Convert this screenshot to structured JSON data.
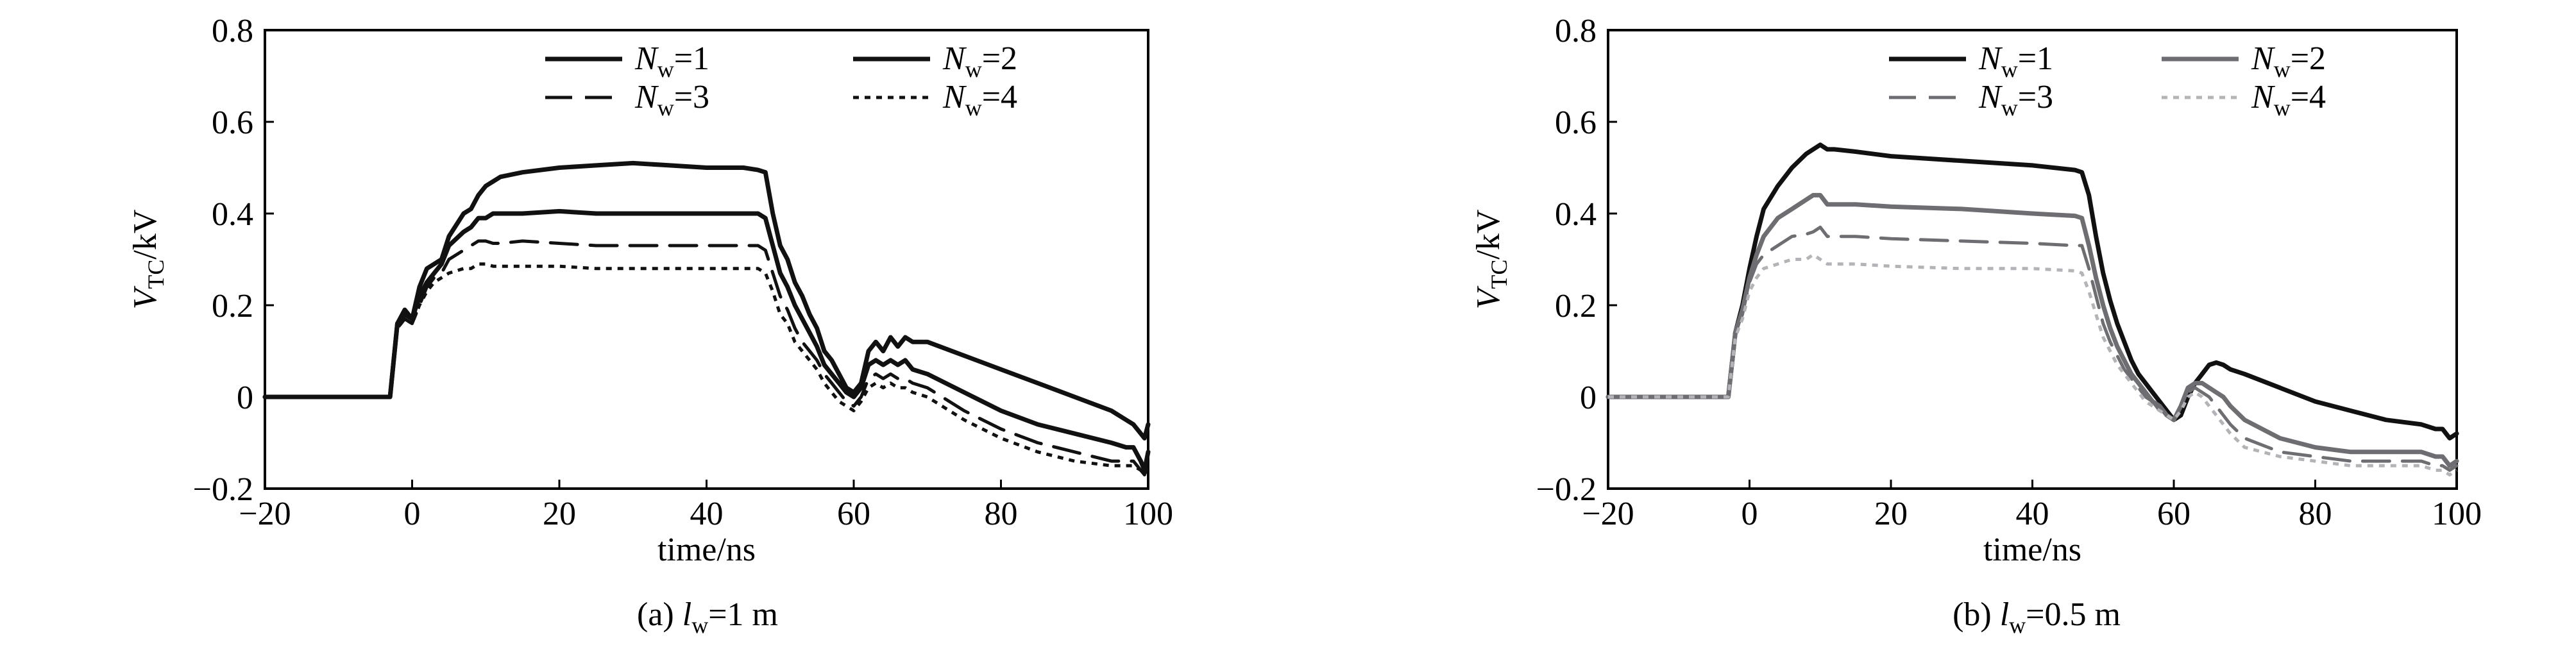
{
  "chart_data": [
    {
      "type": "line",
      "caption_prefix": "(a)",
      "caption_var": "l",
      "caption_sub": "w",
      "caption_rest": "=1 m",
      "xlabel": "time/ns",
      "ylabel_var": "V",
      "ylabel_sub": "TC",
      "ylabel_unit": "/kV",
      "xlim": [
        -20,
        100
      ],
      "ylim": [
        -0.2,
        0.8
      ],
      "xticks": [
        "−20",
        "0",
        "20",
        "40",
        "60",
        "80",
        "100"
      ],
      "xtick_values": [
        -20,
        0,
        20,
        40,
        60,
        80,
        100
      ],
      "yticks": [
        "−0.2",
        "0",
        "0.2",
        "0.4",
        "0.6",
        "0.8"
      ],
      "ytick_values": [
        -0.2,
        0,
        0.2,
        0.4,
        0.6,
        0.8
      ],
      "series": [
        {
          "name": "Nw=1",
          "label_var": "N",
          "label_sub": "w",
          "label_rest": "=1",
          "color": "#111111",
          "dash": "solid",
          "x": [
            -20,
            -3,
            -2,
            -1,
            0,
            1,
            2,
            3,
            4,
            5,
            7,
            8,
            9,
            10,
            11,
            12,
            15,
            20,
            25,
            30,
            35,
            40,
            45,
            47,
            48,
            49,
            50,
            51,
            52,
            53,
            54,
            55,
            56,
            57,
            58,
            59,
            60,
            61,
            62,
            63,
            64,
            65,
            66,
            67,
            68,
            70,
            75,
            80,
            85,
            90,
            95,
            97,
            98,
            99,
            99.5,
            100
          ],
          "y": [
            0,
            0,
            0.16,
            0.19,
            0.17,
            0.24,
            0.28,
            0.29,
            0.3,
            0.35,
            0.4,
            0.41,
            0.44,
            0.46,
            0.47,
            0.48,
            0.49,
            0.5,
            0.505,
            0.51,
            0.505,
            0.5,
            0.5,
            0.495,
            0.49,
            0.4,
            0.33,
            0.3,
            0.25,
            0.22,
            0.18,
            0.15,
            0.1,
            0.08,
            0.05,
            0.02,
            0.01,
            0.03,
            0.1,
            0.12,
            0.1,
            0.13,
            0.11,
            0.13,
            0.12,
            0.12,
            0.09,
            0.06,
            0.03,
            0.0,
            -0.03,
            -0.05,
            -0.06,
            -0.08,
            -0.09,
            -0.06
          ]
        },
        {
          "name": "Nw=2",
          "label_var": "N",
          "label_sub": "w",
          "label_rest": "=2",
          "color": "#111111",
          "dash": "solid",
          "x": [
            -20,
            -3,
            -2,
            -1,
            0,
            1,
            2,
            3,
            4,
            5,
            7,
            8,
            9,
            10,
            11,
            12,
            15,
            20,
            25,
            30,
            35,
            40,
            45,
            47,
            48,
            49,
            50,
            51,
            52,
            53,
            54,
            55,
            56,
            57,
            58,
            59,
            60,
            61,
            62,
            63,
            64,
            65,
            66,
            67,
            68,
            70,
            75,
            80,
            85,
            90,
            95,
            97,
            98,
            99,
            99.5,
            100
          ],
          "y": [
            0,
            0,
            0.16,
            0.18,
            0.17,
            0.22,
            0.25,
            0.27,
            0.29,
            0.33,
            0.36,
            0.37,
            0.39,
            0.39,
            0.4,
            0.4,
            0.4,
            0.405,
            0.4,
            0.4,
            0.4,
            0.4,
            0.4,
            0.4,
            0.39,
            0.33,
            0.27,
            0.24,
            0.2,
            0.17,
            0.14,
            0.11,
            0.07,
            0.05,
            0.03,
            0.01,
            0.0,
            0.02,
            0.07,
            0.08,
            0.07,
            0.08,
            0.07,
            0.08,
            0.06,
            0.05,
            0.01,
            -0.03,
            -0.06,
            -0.08,
            -0.1,
            -0.11,
            -0.11,
            -0.14,
            -0.16,
            -0.12
          ]
        },
        {
          "name": "Nw=3",
          "label_var": "N",
          "label_sub": "w",
          "label_rest": "=3",
          "color": "#111111",
          "dash": "dashed",
          "x": [
            -20,
            -3,
            -2,
            -1,
            0,
            1,
            2,
            3,
            4,
            5,
            7,
            8,
            9,
            10,
            11,
            12,
            15,
            20,
            25,
            30,
            35,
            40,
            45,
            47,
            48,
            49,
            50,
            51,
            52,
            53,
            54,
            55,
            56,
            57,
            58,
            59,
            60,
            61,
            62,
            63,
            64,
            65,
            66,
            67,
            68,
            70,
            75,
            80,
            85,
            90,
            95,
            97,
            98,
            99,
            99.5,
            100
          ],
          "y": [
            0,
            0,
            0.15,
            0.17,
            0.16,
            0.2,
            0.24,
            0.26,
            0.27,
            0.3,
            0.32,
            0.33,
            0.34,
            0.34,
            0.335,
            0.335,
            0.34,
            0.335,
            0.33,
            0.33,
            0.33,
            0.33,
            0.33,
            0.33,
            0.32,
            0.27,
            0.22,
            0.19,
            0.15,
            0.12,
            0.1,
            0.08,
            0.05,
            0.03,
            0.01,
            -0.01,
            -0.02,
            0.0,
            0.04,
            0.05,
            0.04,
            0.05,
            0.04,
            0.04,
            0.03,
            0.02,
            -0.03,
            -0.07,
            -0.1,
            -0.12,
            -0.14,
            -0.14,
            -0.14,
            -0.16,
            -0.17,
            -0.14
          ]
        },
        {
          "name": "Nw=4",
          "label_var": "N",
          "label_sub": "w",
          "label_rest": "=4",
          "color": "#111111",
          "dash": "dotted",
          "x": [
            -20,
            -3,
            -2,
            -1,
            0,
            1,
            2,
            3,
            4,
            5,
            7,
            8,
            9,
            10,
            11,
            12,
            15,
            20,
            25,
            30,
            35,
            40,
            45,
            47,
            48,
            49,
            50,
            51,
            52,
            53,
            54,
            55,
            56,
            57,
            58,
            59,
            60,
            61,
            62,
            63,
            64,
            65,
            66,
            67,
            68,
            70,
            75,
            80,
            85,
            90,
            95,
            97,
            98,
            99,
            99.5,
            100
          ],
          "y": [
            0,
            0,
            0.15,
            0.17,
            0.16,
            0.2,
            0.23,
            0.25,
            0.26,
            0.27,
            0.28,
            0.28,
            0.29,
            0.29,
            0.285,
            0.285,
            0.285,
            0.285,
            0.28,
            0.28,
            0.28,
            0.28,
            0.28,
            0.28,
            0.27,
            0.23,
            0.18,
            0.16,
            0.12,
            0.1,
            0.08,
            0.06,
            0.03,
            0.01,
            -0.01,
            -0.02,
            -0.03,
            -0.01,
            0.02,
            0.03,
            0.02,
            0.03,
            0.02,
            0.02,
            0.01,
            0.0,
            -0.05,
            -0.09,
            -0.12,
            -0.14,
            -0.15,
            -0.15,
            -0.15,
            -0.16,
            -0.17,
            -0.15
          ]
        }
      ]
    },
    {
      "type": "line",
      "caption_prefix": "(b)",
      "caption_var": "l",
      "caption_sub": "w",
      "caption_rest": "=0.5 m",
      "xlabel": "time/ns",
      "ylabel_var": "V",
      "ylabel_sub": "TC",
      "ylabel_unit": "/kV",
      "xlim": [
        -20,
        100
      ],
      "ylim": [
        -0.2,
        0.8
      ],
      "xticks": [
        "−20",
        "0",
        "20",
        "40",
        "60",
        "80",
        "100"
      ],
      "xtick_values": [
        -20,
        0,
        20,
        40,
        60,
        80,
        100
      ],
      "yticks": [
        "−0.2",
        "0",
        "0.2",
        "0.4",
        "0.6",
        "0.8"
      ],
      "ytick_values": [
        -0.2,
        0,
        0.2,
        0.4,
        0.6,
        0.8
      ],
      "series": [
        {
          "name": "Nw=1",
          "label_var": "N",
          "label_sub": "w",
          "label_rest": "=1",
          "color": "#111111",
          "dash": "solid",
          "x": [
            -20,
            -3,
            -2,
            -1,
            0,
            1,
            2,
            4,
            6,
            8,
            9,
            10,
            11,
            12,
            15,
            20,
            30,
            40,
            46,
            47,
            48,
            49,
            50,
            51,
            52,
            53,
            54,
            55,
            56,
            57,
            58,
            59,
            60,
            61,
            62,
            63,
            64,
            65,
            66,
            67,
            68,
            70,
            75,
            80,
            85,
            90,
            95,
            97,
            98,
            99,
            100
          ],
          "y": [
            0,
            0,
            0.14,
            0.2,
            0.28,
            0.35,
            0.41,
            0.46,
            0.5,
            0.53,
            0.54,
            0.55,
            0.54,
            0.54,
            0.535,
            0.525,
            0.515,
            0.505,
            0.495,
            0.49,
            0.44,
            0.35,
            0.27,
            0.21,
            0.16,
            0.12,
            0.08,
            0.05,
            0.03,
            0.01,
            -0.01,
            -0.03,
            -0.05,
            -0.04,
            0.0,
            0.03,
            0.05,
            0.07,
            0.075,
            0.07,
            0.06,
            0.05,
            0.02,
            -0.01,
            -0.03,
            -0.05,
            -0.06,
            -0.07,
            -0.07,
            -0.09,
            -0.08
          ]
        },
        {
          "name": "Nw=2",
          "label_var": "N",
          "label_sub": "w",
          "label_rest": "=2",
          "color": "#6e6e72",
          "dash": "solid",
          "x": [
            -20,
            -3,
            -2,
            -1,
            0,
            1,
            2,
            4,
            6,
            8,
            9,
            10,
            11,
            12,
            15,
            20,
            30,
            40,
            46,
            47,
            48,
            49,
            50,
            51,
            52,
            53,
            54,
            55,
            56,
            57,
            58,
            59,
            60,
            61,
            62,
            63,
            64,
            65,
            66,
            67,
            68,
            70,
            75,
            80,
            85,
            90,
            95,
            97,
            98,
            99,
            100
          ],
          "y": [
            0,
            0,
            0.14,
            0.19,
            0.26,
            0.31,
            0.35,
            0.39,
            0.41,
            0.43,
            0.44,
            0.44,
            0.42,
            0.42,
            0.42,
            0.415,
            0.41,
            0.4,
            0.395,
            0.39,
            0.33,
            0.26,
            0.2,
            0.15,
            0.11,
            0.08,
            0.05,
            0.03,
            0.01,
            -0.01,
            -0.02,
            -0.04,
            -0.05,
            -0.02,
            0.02,
            0.03,
            0.03,
            0.02,
            0.01,
            0.0,
            -0.02,
            -0.05,
            -0.09,
            -0.11,
            -0.12,
            -0.12,
            -0.12,
            -0.13,
            -0.13,
            -0.15,
            -0.14
          ]
        },
        {
          "name": "Nw=3",
          "label_var": "N",
          "label_sub": "w",
          "label_rest": "=3",
          "color": "#6e6e72",
          "dash": "dashed",
          "x": [
            -20,
            -3,
            -2,
            -1,
            0,
            1,
            2,
            4,
            6,
            8,
            9,
            10,
            11,
            12,
            15,
            20,
            30,
            40,
            46,
            47,
            48,
            49,
            50,
            51,
            52,
            53,
            54,
            55,
            56,
            57,
            58,
            59,
            60,
            61,
            62,
            63,
            64,
            65,
            66,
            67,
            68,
            70,
            75,
            80,
            85,
            90,
            95,
            97,
            98,
            99,
            100
          ],
          "y": [
            0,
            0,
            0.14,
            0.18,
            0.25,
            0.29,
            0.31,
            0.33,
            0.35,
            0.355,
            0.36,
            0.37,
            0.35,
            0.35,
            0.35,
            0.345,
            0.34,
            0.335,
            0.33,
            0.33,
            0.28,
            0.22,
            0.16,
            0.12,
            0.09,
            0.06,
            0.04,
            0.02,
            0.0,
            -0.01,
            -0.03,
            -0.04,
            -0.05,
            -0.02,
            0.01,
            0.02,
            0.01,
            0.0,
            -0.02,
            -0.04,
            -0.06,
            -0.09,
            -0.12,
            -0.13,
            -0.14,
            -0.14,
            -0.14,
            -0.15,
            -0.15,
            -0.16,
            -0.15
          ]
        },
        {
          "name": "Nw=4",
          "label_var": "N",
          "label_sub": "w",
          "label_rest": "=4",
          "color": "#b4b4b8",
          "dash": "dotted",
          "x": [
            -20,
            -3,
            -2,
            -1,
            0,
            1,
            2,
            4,
            6,
            8,
            9,
            10,
            11,
            12,
            15,
            20,
            30,
            40,
            46,
            47,
            48,
            49,
            50,
            51,
            52,
            53,
            54,
            55,
            56,
            57,
            58,
            59,
            60,
            61,
            62,
            63,
            64,
            65,
            66,
            67,
            68,
            70,
            75,
            80,
            85,
            90,
            95,
            97,
            98,
            99,
            100
          ],
          "y": [
            0,
            0,
            0.13,
            0.17,
            0.23,
            0.26,
            0.28,
            0.29,
            0.3,
            0.3,
            0.31,
            0.3,
            0.29,
            0.29,
            0.29,
            0.285,
            0.28,
            0.28,
            0.275,
            0.27,
            0.23,
            0.18,
            0.13,
            0.1,
            0.07,
            0.05,
            0.03,
            0.01,
            -0.01,
            -0.02,
            -0.03,
            -0.04,
            -0.05,
            -0.03,
            0.0,
            0.01,
            0.0,
            -0.02,
            -0.04,
            -0.06,
            -0.08,
            -0.11,
            -0.13,
            -0.14,
            -0.15,
            -0.15,
            -0.15,
            -0.16,
            -0.16,
            -0.17,
            -0.16
          ]
        }
      ]
    }
  ]
}
